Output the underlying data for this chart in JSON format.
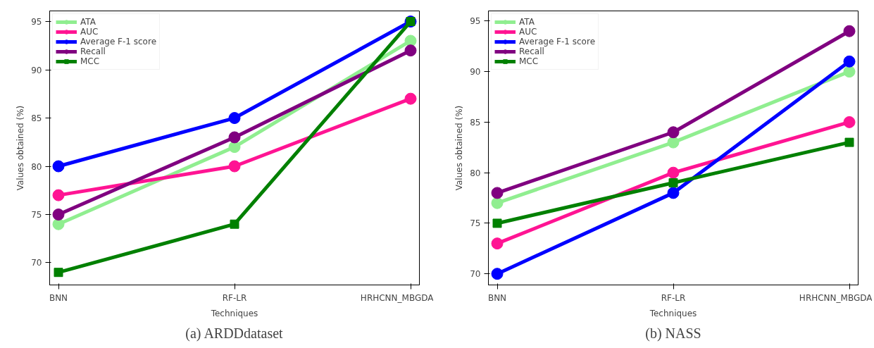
{
  "chart_data": [
    {
      "type": "line",
      "title": "(a) ARDDdataset",
      "xlabel": "Techniques",
      "ylabel": "Values obtained (%)",
      "categories": [
        "BNN",
        "RF-LR",
        "HRHCNN_MBGDA"
      ],
      "ylim": [
        67.7,
        96.1
      ],
      "yticks": [
        70,
        75,
        80,
        85,
        90,
        95
      ],
      "grid": false,
      "legend": "top left",
      "series": [
        {
          "name": "ATA",
          "color": "#90ee90",
          "marker": "circle",
          "values": [
            74,
            82,
            93
          ]
        },
        {
          "name": "AUC",
          "color": "#ff1493",
          "marker": "circle",
          "values": [
            77,
            80,
            87
          ]
        },
        {
          "name": "Average F-1 score",
          "color": "#0000ff",
          "marker": "circle",
          "values": [
            80,
            85,
            95
          ]
        },
        {
          "name": "Recall",
          "color": "#800080",
          "marker": "circle",
          "values": [
            75,
            83,
            92
          ]
        },
        {
          "name": "MCC",
          "color": "#008000",
          "marker": "square",
          "values": [
            69,
            74,
            95
          ]
        }
      ]
    },
    {
      "type": "line",
      "title": "(b) NASS",
      "xlabel": "Techniques",
      "ylabel": "Values obtained (%)",
      "categories": [
        "BNN",
        "RF-LR",
        "HRHCNN_MBGDA"
      ],
      "ylim": [
        68.9,
        96.0
      ],
      "yticks": [
        70,
        75,
        80,
        85,
        90,
        95
      ],
      "grid": false,
      "legend": "top left",
      "series": [
        {
          "name": "ATA",
          "color": "#90ee90",
          "marker": "circle",
          "values": [
            77,
            83,
            90
          ]
        },
        {
          "name": "AUC",
          "color": "#ff1493",
          "marker": "circle",
          "values": [
            73,
            80,
            85
          ]
        },
        {
          "name": "Average F-1 score",
          "color": "#0000ff",
          "marker": "circle",
          "values": [
            70,
            78,
            91
          ]
        },
        {
          "name": "Recall",
          "color": "#800080",
          "marker": "circle",
          "values": [
            78,
            84,
            94
          ]
        },
        {
          "name": "MCC",
          "color": "#008000",
          "marker": "square",
          "values": [
            75,
            79,
            83
          ]
        }
      ]
    }
  ]
}
